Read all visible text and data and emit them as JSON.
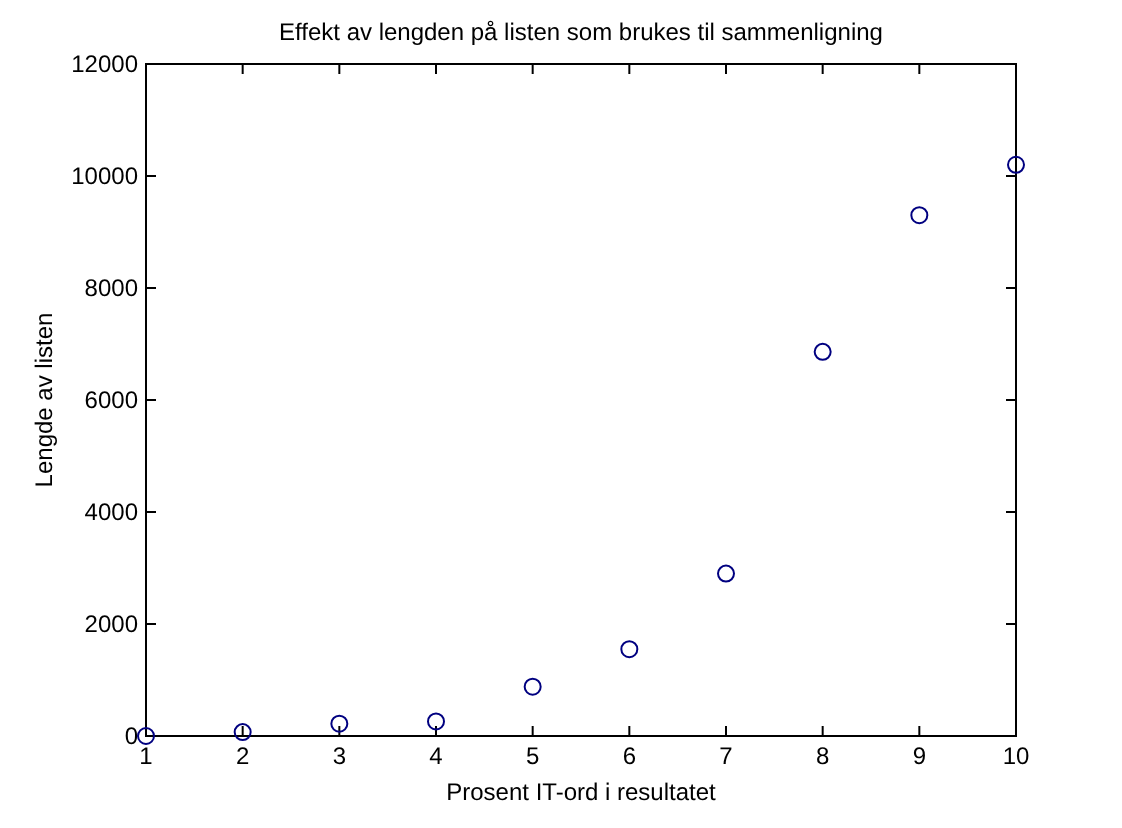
{
  "chart_data": {
    "type": "scatter",
    "title": "Effekt av lengden på listen som brukes til sammenligning",
    "xlabel": "Prosent IT-ord i resultatet",
    "ylabel": "Lengde av listen",
    "x": [
      1,
      2,
      3,
      4,
      5,
      6,
      7,
      8,
      9,
      10
    ],
    "series": [
      {
        "color": "#000080",
        "values": [
          0,
          70,
          220,
          260,
          880,
          1550,
          2900,
          6860,
          9300,
          10200
        ]
      }
    ],
    "xlim": [
      1,
      10
    ],
    "xticks": [
      1,
      2,
      3,
      4,
      5,
      6,
      7,
      8,
      9,
      10
    ],
    "ylim": [
      0,
      12000
    ],
    "yticks": [
      0,
      2000,
      4000,
      6000,
      8000,
      10000,
      12000
    ],
    "grid": false,
    "marker": "circle"
  }
}
